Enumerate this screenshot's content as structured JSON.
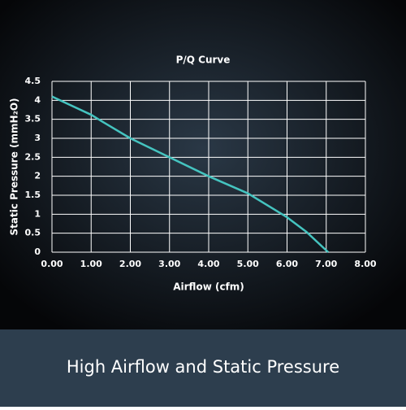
{
  "chart_data": {
    "type": "line",
    "title": "P/Q Curve",
    "x_label": "Airflow (cfm)",
    "y_label": "Static Pressure (mmH₂O)",
    "x": [
      0,
      1,
      1.3,
      2,
      3,
      4,
      5,
      6,
      6.5,
      7.05
    ],
    "series": [
      {
        "name": "P/Q Curve",
        "color": "#45c4c0",
        "values": [
          4.1,
          3.62,
          3.43,
          3.0,
          2.5,
          2.0,
          1.55,
          0.92,
          0.53,
          0
        ]
      }
    ],
    "xlim": [
      0,
      8
    ],
    "ylim": [
      0,
      4.5
    ],
    "xticks": [
      {
        "value": 0,
        "label": "0.00"
      },
      {
        "value": 1,
        "label": "1.00"
      },
      {
        "value": 2,
        "label": "2.00"
      },
      {
        "value": 3,
        "label": "3.00"
      },
      {
        "value": 4,
        "label": "4.00"
      },
      {
        "value": 5,
        "label": "5.00"
      },
      {
        "value": 6,
        "label": "6.00"
      },
      {
        "value": 7,
        "label": "7.00"
      },
      {
        "value": 8,
        "label": "8.00"
      }
    ],
    "yticks": [
      0,
      0.5,
      1,
      1.5,
      2,
      2.5,
      3,
      3.5,
      4,
      4.5
    ],
    "grid": true
  },
  "banner": {
    "text": "High Airflow and Static Pressure"
  }
}
